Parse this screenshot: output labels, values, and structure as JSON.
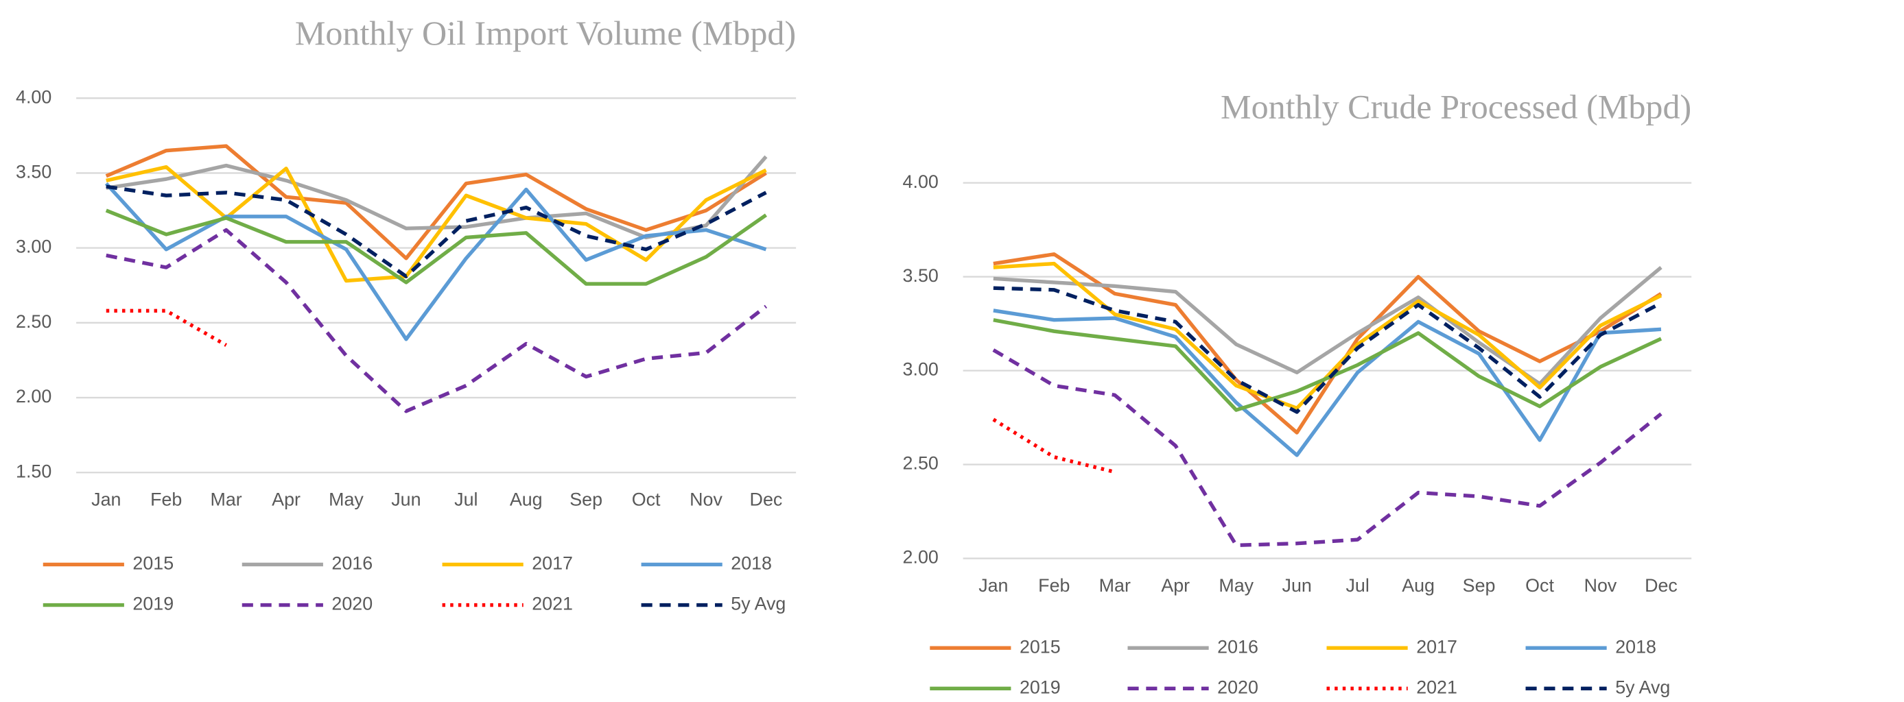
{
  "chart_data": [
    {
      "type": "line",
      "title": "Monthly Oil Import Volume (Mbpd)",
      "categories": [
        "Jan",
        "Feb",
        "Mar",
        "Apr",
        "May",
        "Jun",
        "Jul",
        "Aug",
        "Sep",
        "Oct",
        "Nov",
        "Dec"
      ],
      "ylim": [
        1.5,
        4
      ],
      "yticks": [
        {
          "value": 1.5,
          "label": "1.50"
        },
        {
          "value": 2,
          "label": "2.00"
        },
        {
          "value": 2.5,
          "label": "2.50"
        },
        {
          "value": 3,
          "label": "3.00"
        },
        {
          "value": 3.5,
          "label": "3.50"
        },
        {
          "value": 4,
          "label": "4.00"
        }
      ],
      "grid": true,
      "legend": "bottom",
      "series": [
        {
          "name": "2015",
          "color": "#ed7d31",
          "values": [
            3.48,
            3.65,
            3.68,
            3.34,
            3.3,
            2.93,
            3.43,
            3.49,
            3.26,
            3.12,
            3.25,
            3.5
          ]
        },
        {
          "name": "2016",
          "color": "#a5a5a5",
          "values": [
            3.4,
            3.46,
            3.55,
            3.45,
            3.32,
            3.13,
            3.14,
            3.2,
            3.23,
            3.07,
            3.15,
            3.61
          ]
        },
        {
          "name": "2017",
          "color": "#ffc000",
          "values": [
            3.45,
            3.54,
            3.2,
            3.53,
            2.78,
            2.81,
            3.35,
            3.2,
            3.16,
            2.92,
            3.32,
            3.52
          ]
        },
        {
          "name": "2018",
          "color": "#5b9bd5",
          "values": [
            3.43,
            2.99,
            3.21,
            3.21,
            2.99,
            2.39,
            2.93,
            3.39,
            2.92,
            3.08,
            3.12,
            2.99
          ]
        },
        {
          "name": "2019",
          "color": "#70ad47",
          "values": [
            3.25,
            3.09,
            3.2,
            3.04,
            3.04,
            2.77,
            3.07,
            3.1,
            2.76,
            2.76,
            2.94,
            3.22
          ]
        },
        {
          "name": "2020",
          "color": "#7030a0",
          "dash": "dashed",
          "values": [
            2.95,
            2.87,
            3.12,
            2.77,
            2.28,
            1.91,
            2.08,
            2.36,
            2.14,
            2.26,
            2.3,
            2.61
          ]
        },
        {
          "name": "2021",
          "color": "#ff0000",
          "dash": "dotted",
          "values": [
            2.58,
            2.58,
            2.35,
            null,
            null,
            null,
            null,
            null,
            null,
            null,
            null,
            null
          ]
        },
        {
          "name": "5y Avg",
          "color": "#002060",
          "dash": "dashed",
          "values": [
            3.41,
            3.35,
            3.37,
            3.32,
            3.09,
            2.81,
            3.18,
            3.27,
            3.08,
            2.99,
            3.16,
            3.37
          ]
        }
      ]
    },
    {
      "type": "line",
      "title": "Monthly Crude Processed (Mbpd)",
      "categories": [
        "Jan",
        "Feb",
        "Mar",
        "Apr",
        "May",
        "Jun",
        "Jul",
        "Aug",
        "Sep",
        "Oct",
        "Nov",
        "Dec"
      ],
      "ylim": [
        2,
        4
      ],
      "yticks": [
        {
          "value": 2,
          "label": "2.00"
        },
        {
          "value": 2.5,
          "label": "2.50"
        },
        {
          "value": 3,
          "label": "3.00"
        },
        {
          "value": 3.5,
          "label": "3.50"
        },
        {
          "value": 4,
          "label": "4.00"
        }
      ],
      "grid": true,
      "legend": "bottom",
      "series": [
        {
          "name": "2015",
          "color": "#ed7d31",
          "values": [
            3.57,
            3.62,
            3.41,
            3.35,
            2.95,
            2.67,
            3.17,
            3.5,
            3.21,
            3.05,
            3.21,
            3.41
          ]
        },
        {
          "name": "2016",
          "color": "#a5a5a5",
          "values": [
            3.49,
            3.47,
            3.45,
            3.42,
            3.14,
            2.99,
            3.2,
            3.39,
            3.15,
            2.93,
            3.28,
            3.55
          ]
        },
        {
          "name": "2017",
          "color": "#ffc000",
          "values": [
            3.55,
            3.57,
            3.3,
            3.22,
            2.92,
            2.8,
            3.14,
            3.37,
            3.19,
            2.91,
            3.24,
            3.4
          ]
        },
        {
          "name": "2018",
          "color": "#5b9bd5",
          "values": [
            3.32,
            3.27,
            3.28,
            3.18,
            2.83,
            2.55,
            2.99,
            3.26,
            3.09,
            2.63,
            3.2,
            3.22
          ]
        },
        {
          "name": "2019",
          "color": "#70ad47",
          "values": [
            3.27,
            3.21,
            3.17,
            3.13,
            2.79,
            2.89,
            3.03,
            3.2,
            2.97,
            2.81,
            3.02,
            3.17
          ]
        },
        {
          "name": "2020",
          "color": "#7030a0",
          "dash": "dashed",
          "values": [
            3.11,
            2.92,
            2.87,
            2.6,
            2.07,
            2.08,
            2.1,
            2.35,
            2.33,
            2.28,
            2.51,
            2.77
          ]
        },
        {
          "name": "2021",
          "color": "#ff0000",
          "dash": "dotted",
          "values": [
            2.74,
            2.54,
            2.46,
            null,
            null,
            null,
            null,
            null,
            null,
            null,
            null,
            null
          ]
        },
        {
          "name": "5y Avg",
          "color": "#002060",
          "dash": "dashed",
          "values": [
            3.44,
            3.43,
            3.32,
            3.26,
            2.95,
            2.78,
            3.12,
            3.35,
            3.12,
            2.86,
            3.19,
            3.36
          ]
        }
      ]
    }
  ]
}
